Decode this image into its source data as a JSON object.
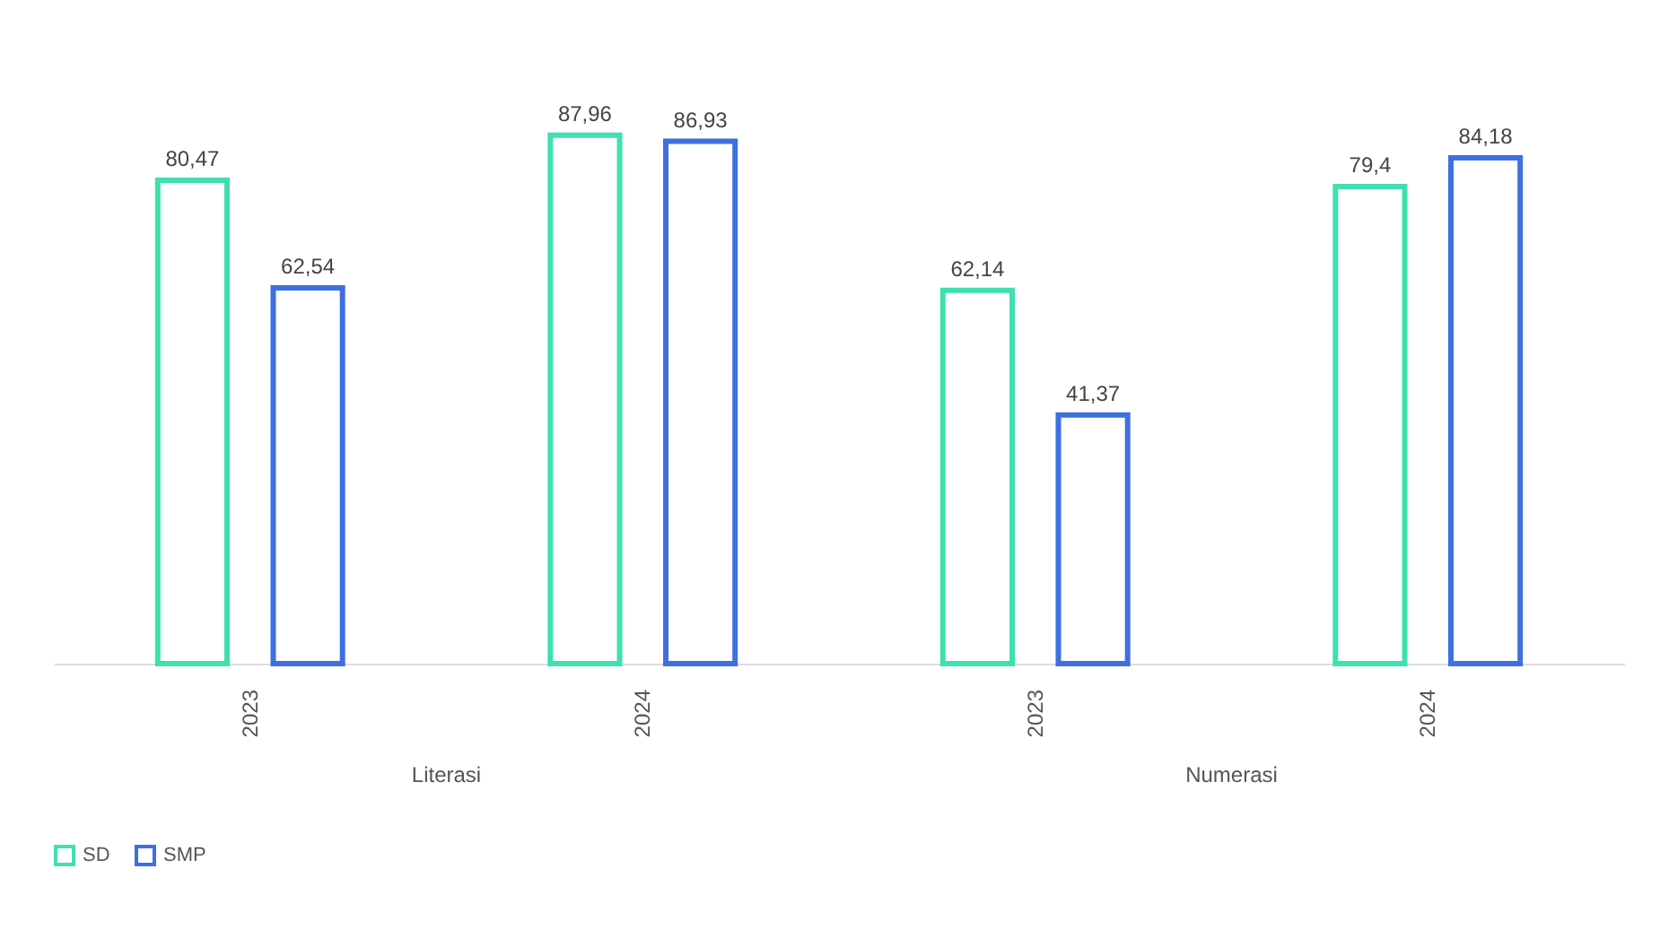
{
  "chart_data": {
    "type": "bar",
    "categories": [
      "2023",
      "2024",
      "2023",
      "2024"
    ],
    "series": [
      {
        "name": "SD",
        "color": "#3fe0b0",
        "values": [
          80.47,
          87.96,
          62.14,
          79.4
        ],
        "value_labels": [
          "80,47",
          "87,96",
          "62,14",
          "79,4"
        ]
      },
      {
        "name": "SMP",
        "color": "#3f6fe0",
        "values": [
          62.54,
          86.93,
          41.37,
          84.18
        ],
        "value_labels": [
          "62,54",
          "86,93",
          "41,37",
          "84,18"
        ]
      }
    ],
    "annotations": [
      "Literasi",
      "Numerasi"
    ],
    "legend": "bottom",
    "grid": false
  }
}
